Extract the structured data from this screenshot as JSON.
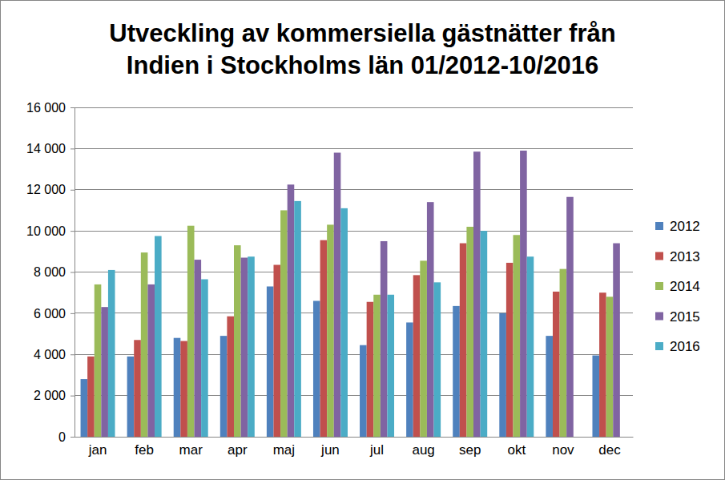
{
  "chart_data": {
    "type": "bar",
    "title": "Utveckling av kommersiella gästnätter från Indien i Stockholms län 01/2012-10/2016",
    "categories": [
      "jan",
      "feb",
      "mar",
      "apr",
      "maj",
      "jun",
      "jul",
      "aug",
      "sep",
      "okt",
      "nov",
      "dec"
    ],
    "series": [
      {
        "name": "2012",
        "color": "#4f81bd",
        "values": [
          2800,
          3900,
          4800,
          4900,
          7300,
          6600,
          4450,
          5550,
          6350,
          6000,
          4900,
          3950
        ]
      },
      {
        "name": "2013",
        "color": "#c0504d",
        "values": [
          3900,
          4700,
          4650,
          5850,
          8350,
          9550,
          6550,
          7850,
          9400,
          8450,
          7050,
          7000
        ]
      },
      {
        "name": "2014",
        "color": "#9bbb59",
        "values": [
          7400,
          8950,
          10250,
          9300,
          11000,
          10300,
          6900,
          8550,
          10200,
          9800,
          8150,
          6800
        ]
      },
      {
        "name": "2015",
        "color": "#8064a2",
        "values": [
          6300,
          7400,
          8600,
          8700,
          12250,
          13800,
          9500,
          11400,
          13850,
          13900,
          11650,
          9400
        ]
      },
      {
        "name": "2016",
        "color": "#4bacc6",
        "values": [
          8100,
          9750,
          7650,
          8750,
          11450,
          11100,
          6900,
          7500,
          10000,
          8750,
          null,
          null
        ]
      }
    ],
    "ylim": [
      0,
      16000
    ],
    "yticks": [
      {
        "value": 0,
        "label": "0"
      },
      {
        "value": 2000,
        "label": "2 000"
      },
      {
        "value": 4000,
        "label": "4 000"
      },
      {
        "value": 6000,
        "label": "6 000"
      },
      {
        "value": 8000,
        "label": "8 000"
      },
      {
        "value": 10000,
        "label": "10 000"
      },
      {
        "value": 12000,
        "label": "12 000"
      },
      {
        "value": 14000,
        "label": "14 000"
      },
      {
        "value": 16000,
        "label": "16 000"
      }
    ],
    "grid": true,
    "legend": "right"
  }
}
